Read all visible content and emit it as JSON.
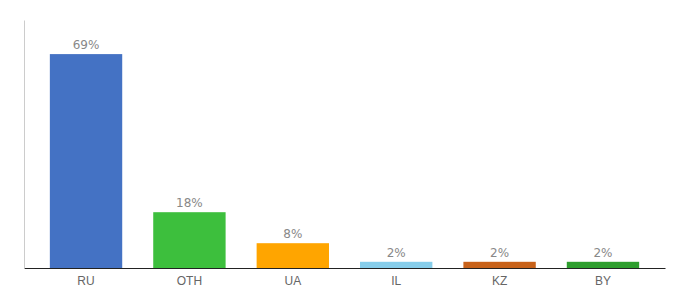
{
  "chart_data": {
    "type": "bar",
    "categories": [
      "RU",
      "OTH",
      "UA",
      "IL",
      "KZ",
      "BY"
    ],
    "values": [
      69,
      18,
      8,
      2,
      2,
      2
    ],
    "value_labels": [
      "69%",
      "18%",
      "8%",
      "2%",
      "2%",
      "2%"
    ],
    "data_labels": true,
    "colors": [
      "#4472C4",
      "#3DBF3D",
      "#FFA500",
      "#87CEEB",
      "#C8621A",
      "#2E9E2E"
    ],
    "ylim": [
      0,
      80
    ],
    "grid": false,
    "tick_labels": "x"
  }
}
